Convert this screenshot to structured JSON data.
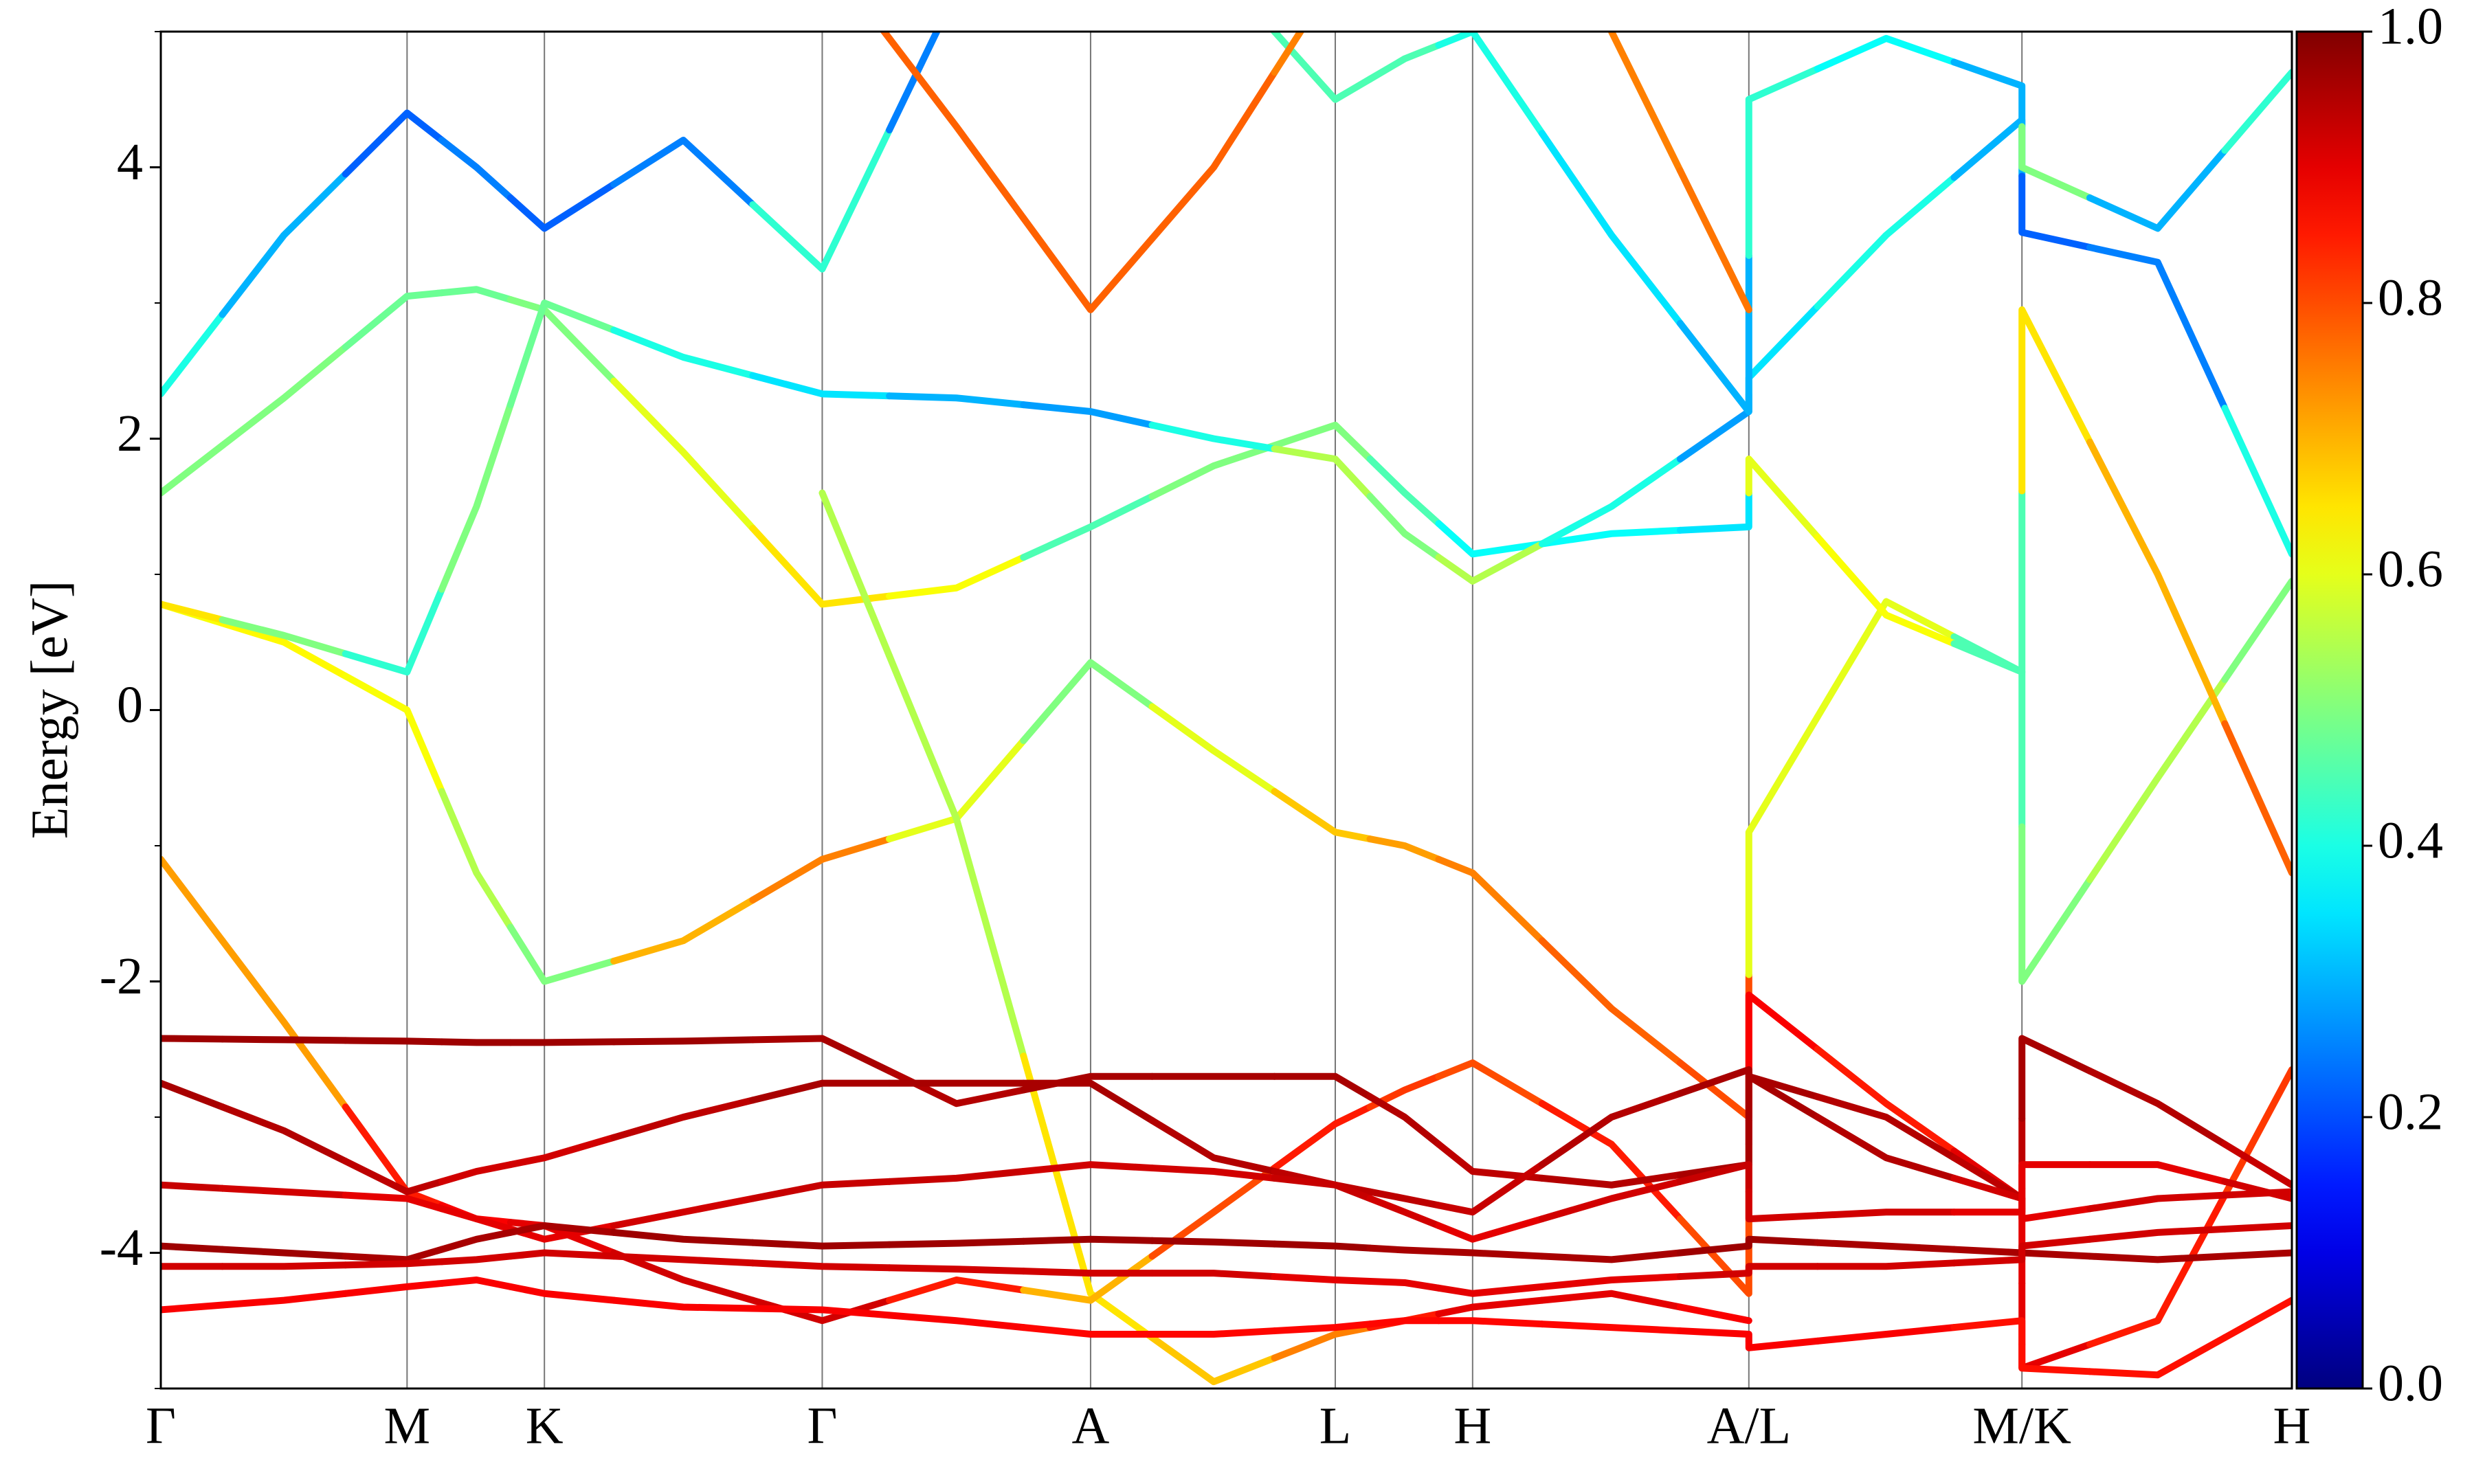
{
  "chart_data": {
    "type": "bands",
    "ylabel": "Energy [eV]",
    "xlim": [
      0,
      1350
    ],
    "xticks": [
      {
        "value": 0,
        "label": "Γ"
      },
      {
        "value": 156,
        "label": "M"
      },
      {
        "value": 243,
        "label": "K"
      },
      {
        "value": 419,
        "label": "Γ"
      },
      {
        "value": 589,
        "label": "A"
      },
      {
        "value": 744,
        "label": "L"
      },
      {
        "value": 831,
        "label": "H"
      },
      {
        "value": 1006,
        "label": "A/L"
      },
      {
        "value": 1179,
        "label": "M/K"
      },
      {
        "value": 1350,
        "label": "H"
      }
    ],
    "ylim": [
      -5,
      5
    ],
    "yticks": [
      -4,
      -2,
      0,
      2,
      4
    ],
    "yminorticks": [
      -5,
      -3,
      -1,
      1,
      3,
      5
    ],
    "colormap": "jet",
    "clim": [
      0,
      1
    ],
    "cticks": [
      {
        "value": 0,
        "label": "0.0"
      },
      {
        "value": 0.2,
        "label": "0.2"
      },
      {
        "value": 0.4,
        "label": "0.4"
      },
      {
        "value": 0.6,
        "label": "0.6"
      },
      {
        "value": 0.8,
        "label": "0.8"
      },
      {
        "value": 1,
        "label": "1.0"
      }
    ],
    "x": [
      0,
      78,
      156,
      200,
      243,
      331,
      419,
      504,
      589,
      667,
      744,
      788,
      831,
      919,
      1006,
      1006,
      1093,
      1179,
      1179,
      1265,
      1350
    ],
    "series": [
      {
        "values": [
          0.78,
          0.5,
          0.0,
          -1.2,
          -2.0,
          -1.7,
          -1.1,
          -0.8,
          0.35,
          -0.3,
          -0.9,
          -1.0,
          -1.2,
          -2.2,
          -3.0,
          -0.9,
          0.8,
          0.28,
          -2.0,
          -0.5,
          0.95
        ],
        "weights": [
          0.62,
          0.63,
          0.62,
          0.55,
          0.5,
          0.7,
          0.75,
          0.6,
          0.5,
          0.6,
          0.68,
          0.72,
          0.75,
          0.78,
          0.8,
          0.6,
          0.6,
          0.45,
          0.5,
          0.55,
          0.5
        ]
      },
      {
        "values": [
          1.6,
          2.3,
          3.05,
          3.1,
          2.95,
          1.9,
          0.78,
          0.9,
          1.35,
          1.8,
          2.1,
          1.6,
          1.15,
          1.3,
          1.35,
          1.85,
          0.7,
          0.28,
          2.95,
          1.0,
          -1.2
        ],
        "weights": [
          0.5,
          0.5,
          0.48,
          0.48,
          0.5,
          0.6,
          0.65,
          0.62,
          0.45,
          0.5,
          0.5,
          0.45,
          0.38,
          0.38,
          0.35,
          0.6,
          0.62,
          0.45,
          0.65,
          0.7,
          0.78
        ]
      },
      {
        "values": [
          0.78,
          0.55,
          0.28,
          1.5,
          3.0,
          2.6,
          2.33,
          2.3,
          2.2,
          2.0,
          1.85,
          1.3,
          0.95,
          1.5,
          2.2,
          2.45,
          3.5,
          4.35,
          3.52,
          3.3,
          1.15
        ],
        "weights": [
          0.65,
          0.5,
          0.42,
          0.5,
          0.48,
          0.4,
          0.35,
          0.3,
          0.28,
          0.4,
          0.55,
          0.5,
          0.55,
          0.4,
          0.28,
          0.35,
          0.4,
          0.3,
          0.22,
          0.25,
          0.4
        ]
      },
      {
        "values": [
          2.33,
          3.5,
          4.4,
          4.0,
          3.55,
          4.2,
          3.25,
          5.3,
          6.0,
          5.5,
          4.5,
          4.8,
          5.0,
          3.5,
          2.2,
          4.5,
          4.95,
          4.6,
          4.0,
          3.55,
          4.7
        ],
        "weights": [
          0.4,
          0.3,
          0.22,
          0.25,
          0.22,
          0.25,
          0.42,
          0.25,
          0.3,
          0.45,
          0.45,
          0.45,
          0.4,
          0.35,
          0.3,
          0.42,
          0.38,
          0.3,
          0.5,
          0.3,
          0.42
        ]
      },
      {
        "values": [
          null,
          null,
          null,
          null,
          null,
          null,
          5.6,
          4.3,
          2.95,
          4.0,
          5.4,
          null,
          null,
          5.0,
          2.95,
          null,
          null,
          null,
          null,
          null,
          null
        ],
        "weights": [
          null,
          null,
          null,
          null,
          null,
          null,
          0.78,
          0.78,
          0.78,
          0.78,
          0.75,
          null,
          null,
          0.75,
          0.76,
          null,
          null,
          null,
          null,
          null,
          null
        ]
      },
      {
        "values": [
          null,
          null,
          null,
          null,
          null,
          null,
          1.6,
          -0.8,
          -4.3,
          -4.95,
          -4.6,
          -4.5,
          -4.4,
          -4.3,
          -4.5,
          null,
          null,
          null,
          null,
          null,
          null
        ],
        "weights": [
          null,
          null,
          null,
          null,
          null,
          null,
          0.55,
          0.55,
          0.65,
          0.68,
          0.75,
          0.85,
          0.9,
          0.9,
          0.88,
          null,
          null,
          null,
          null,
          null,
          null
        ]
      },
      {
        "values": [
          -1.1,
          -2.3,
          -3.55,
          -3.75,
          -3.8,
          -4.2,
          -4.5,
          -4.2,
          -4.35,
          -3.7,
          -3.05,
          -2.8,
          -2.6,
          -3.2,
          -4.3,
          -2.1,
          -2.9,
          -3.6,
          -4.85,
          -4.5,
          -2.65
        ],
        "weights": [
          0.72,
          0.72,
          0.85,
          0.88,
          0.9,
          0.92,
          0.92,
          0.85,
          0.7,
          0.8,
          0.85,
          0.82,
          0.8,
          0.85,
          0.8,
          0.88,
          0.85,
          0.9,
          0.9,
          0.85,
          0.82
        ]
      },
      {
        "values": [
          -2.42,
          -2.43,
          -2.44,
          -2.45,
          -2.45,
          -2.44,
          -2.42,
          -2.9,
          -2.7,
          -2.7,
          -2.7,
          -3.0,
          -3.4,
          -3.5,
          -3.35,
          -2.7,
          -3.0,
          -3.6,
          -2.42,
          -2.9,
          -3.5
        ],
        "weights": [
          0.97,
          0.97,
          0.97,
          0.97,
          0.97,
          0.97,
          0.96,
          0.95,
          0.96,
          0.96,
          0.96,
          0.95,
          0.94,
          0.95,
          0.96,
          0.96,
          0.95,
          0.94,
          0.96,
          0.95,
          0.93
        ]
      },
      {
        "values": [
          -2.75,
          -3.1,
          -3.55,
          -3.4,
          -3.3,
          -3.0,
          -2.75,
          -2.75,
          -2.75,
          -3.3,
          -3.5,
          -3.6,
          -3.7,
          -3.0,
          -2.65,
          -2.7,
          -3.3,
          -3.6,
          -3.75,
          -3.6,
          -3.55
        ],
        "weights": [
          0.96,
          0.95,
          0.94,
          0.92,
          0.92,
          0.94,
          0.96,
          0.96,
          0.96,
          0.95,
          0.94,
          0.94,
          0.93,
          0.95,
          0.96,
          0.96,
          0.95,
          0.92,
          0.9,
          0.92,
          0.92
        ]
      },
      {
        "values": [
          -3.5,
          -3.55,
          -3.6,
          -3.75,
          -3.9,
          -3.7,
          -3.5,
          -3.45,
          -3.35,
          -3.4,
          -3.5,
          -3.7,
          -3.9,
          -3.6,
          -3.35,
          -3.75,
          -3.7,
          -3.7,
          -3.35,
          -3.35,
          -3.6
        ],
        "weights": [
          0.93,
          0.92,
          0.9,
          0.9,
          0.9,
          0.92,
          0.93,
          0.93,
          0.92,
          0.92,
          0.93,
          0.92,
          0.9,
          0.92,
          0.93,
          0.92,
          0.92,
          0.9,
          0.9,
          0.9,
          0.92
        ]
      },
      {
        "values": [
          -3.95,
          -4.0,
          -4.05,
          -3.9,
          -3.8,
          -3.9,
          -3.95,
          -3.93,
          -3.9,
          -3.92,
          -3.95,
          -3.98,
          -4.0,
          -4.05,
          -3.95,
          -3.9,
          -3.95,
          -4.0,
          -4.0,
          -4.05,
          -4.0
        ],
        "weights": [
          0.97,
          0.97,
          0.96,
          0.96,
          0.96,
          0.97,
          0.97,
          0.97,
          0.97,
          0.97,
          0.97,
          0.96,
          0.96,
          0.96,
          0.97,
          0.97,
          0.96,
          0.96,
          0.96,
          0.96,
          0.96
        ]
      },
      {
        "values": [
          -4.1,
          -4.1,
          -4.08,
          -4.05,
          -4.0,
          -4.05,
          -4.1,
          -4.12,
          -4.15,
          -4.15,
          -4.2,
          -4.22,
          -4.3,
          -4.2,
          -4.15,
          -4.1,
          -4.1,
          -4.05,
          -3.95,
          -3.85,
          -3.8
        ],
        "weights": [
          0.92,
          0.92,
          0.92,
          0.92,
          0.92,
          0.92,
          0.92,
          0.92,
          0.92,
          0.92,
          0.9,
          0.9,
          0.9,
          0.9,
          0.92,
          0.92,
          0.92,
          0.92,
          0.92,
          0.92,
          0.92
        ]
      },
      {
        "values": [
          -4.42,
          -4.35,
          -4.25,
          -4.2,
          -4.3,
          -4.4,
          -4.42,
          -4.5,
          -4.6,
          -4.6,
          -4.55,
          -4.5,
          -4.5,
          -4.55,
          -4.6,
          -4.7,
          -4.6,
          -4.5,
          -4.85,
          -4.9,
          -4.35
        ],
        "weights": [
          0.88,
          0.88,
          0.88,
          0.88,
          0.88,
          0.88,
          0.88,
          0.88,
          0.87,
          0.87,
          0.87,
          0.87,
          0.87,
          0.87,
          0.88,
          0.88,
          0.88,
          0.86,
          0.86,
          0.86,
          0.86
        ]
      }
    ]
  }
}
